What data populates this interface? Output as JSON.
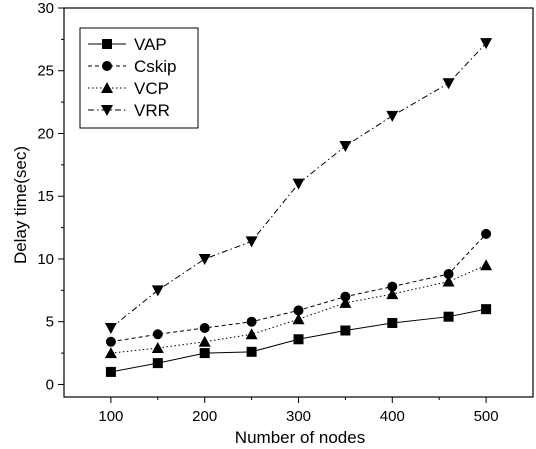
{
  "chart_data": {
    "type": "line",
    "title": "",
    "xlabel": "Number of nodes",
    "ylabel": "Delay time(sec)",
    "xlim": [
      50,
      550
    ],
    "ylim": [
      -1,
      30
    ],
    "xticks": [
      100,
      200,
      300,
      400,
      500
    ],
    "yticks": [
      0,
      5,
      10,
      15,
      20,
      25,
      30
    ],
    "grid": false,
    "legend_position": "top-left",
    "series": [
      {
        "name": "VAP",
        "marker": "square",
        "dash": "solid",
        "x": [
          100,
          150,
          200,
          250,
          300,
          350,
          400,
          460,
          500
        ],
        "y": [
          1.0,
          1.7,
          2.5,
          2.6,
          3.6,
          4.3,
          4.9,
          5.4,
          6.0
        ]
      },
      {
        "name": "Cskip",
        "marker": "circle",
        "dash": "dashed",
        "x": [
          100,
          150,
          200,
          250,
          300,
          350,
          400,
          460,
          500
        ],
        "y": [
          3.4,
          4.0,
          4.5,
          5.0,
          5.9,
          7.0,
          7.8,
          8.8,
          12.0
        ]
      },
      {
        "name": "VCP",
        "marker": "triangle-up",
        "dash": "dotted",
        "x": [
          100,
          150,
          200,
          250,
          300,
          350,
          400,
          460,
          500
        ],
        "y": [
          2.5,
          2.9,
          3.4,
          4.0,
          5.2,
          6.5,
          7.2,
          8.2,
          9.5
        ]
      },
      {
        "name": "VRR",
        "marker": "triangle-down",
        "dash": "dashdot",
        "x": [
          100,
          150,
          200,
          250,
          300,
          350,
          400,
          460,
          500
        ],
        "y": [
          4.5,
          7.5,
          10.0,
          11.4,
          16.0,
          19.0,
          21.4,
          24.0,
          27.2
        ]
      }
    ]
  }
}
